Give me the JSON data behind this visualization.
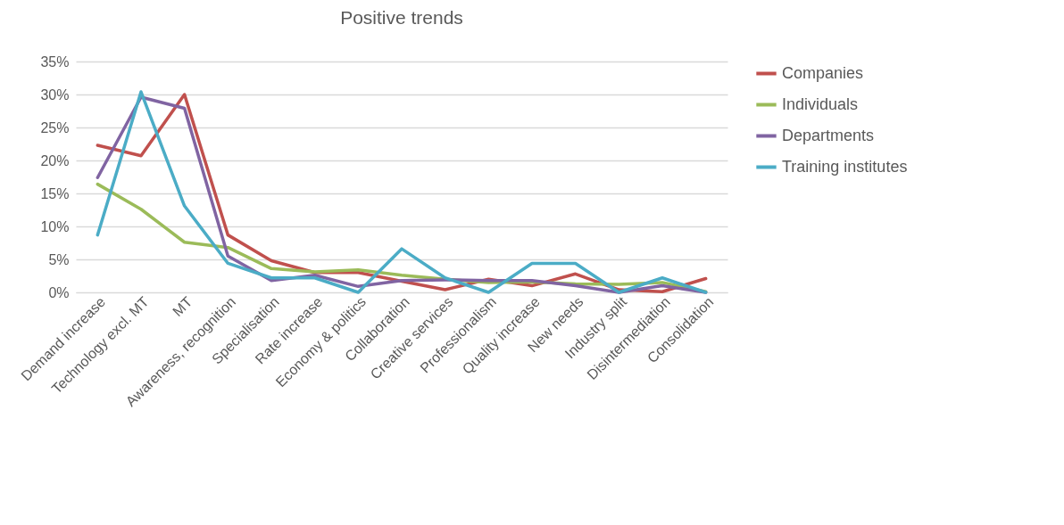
{
  "chart_data": {
    "type": "line",
    "title": "Positive trends",
    "categories": [
      "Demand increase",
      "Technology excl. MT",
      "MT",
      "Awareness, recognition",
      "Specialisation",
      "Rate increase",
      "Economy & politics",
      "Collaboration",
      "Creative services",
      "Professionalism",
      "Quality increase",
      "New needs",
      "Industry split",
      "Disintermediation",
      "Consolidation"
    ],
    "series": [
      {
        "name": "Companies",
        "color": "#c0504d",
        "values": [
          22.3,
          20.7,
          30,
          8.7,
          4.8,
          3.0,
          3.0,
          1.7,
          0.4,
          2.0,
          1.0,
          2.8,
          0.4,
          0.1,
          2.1
        ]
      },
      {
        "name": "Individuals",
        "color": "#9bbb59",
        "values": [
          16.4,
          12.6,
          7.6,
          6.8,
          3.6,
          3.1,
          3.4,
          2.6,
          2.0,
          1.5,
          1.6,
          1.3,
          1.2,
          1.5,
          0.1
        ]
      },
      {
        "name": "Departments",
        "color": "#8064a2",
        "values": [
          17.4,
          29.6,
          27.9,
          5.5,
          1.8,
          2.6,
          0.9,
          1.8,
          1.9,
          1.8,
          1.8,
          1.0,
          0.0,
          1.0,
          0.0
        ]
      },
      {
        "name": "Training institutes",
        "color": "#4bacc6",
        "values": [
          8.7,
          30.4,
          13.1,
          4.4,
          2.2,
          2.2,
          0.0,
          6.6,
          2.2,
          0.0,
          4.4,
          4.4,
          0.0,
          2.2,
          0.0
        ]
      }
    ],
    "ylim": [
      0,
      35
    ],
    "yticks": [
      {
        "value": 0,
        "label": "0%"
      },
      {
        "value": 5,
        "label": "5%"
      },
      {
        "value": 10,
        "label": "10%"
      },
      {
        "value": 15,
        "label": "15%"
      },
      {
        "value": 20,
        "label": "20%"
      },
      {
        "value": 25,
        "label": "25%"
      },
      {
        "value": 30,
        "label": "30%"
      },
      {
        "value": 35,
        "label": "35%"
      }
    ],
    "grid": "y",
    "legend": "right",
    "marker": "none",
    "line_style": "solid"
  }
}
